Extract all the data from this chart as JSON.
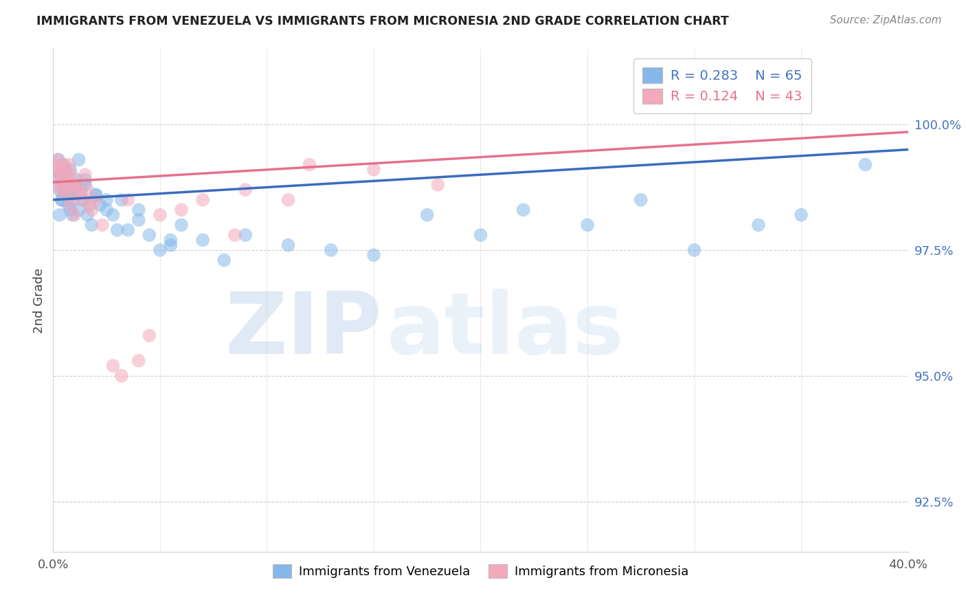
{
  "title": "IMMIGRANTS FROM VENEZUELA VS IMMIGRANTS FROM MICRONESIA 2ND GRADE CORRELATION CHART",
  "source": "Source: ZipAtlas.com",
  "ylabel": "2nd Grade",
  "watermark_zip": "ZIP",
  "watermark_atlas": "atlas",
  "xlim": [
    0.0,
    40.0
  ],
  "ylim": [
    91.5,
    101.5
  ],
  "yticks": [
    92.5,
    95.0,
    97.5,
    100.0
  ],
  "ytick_labels": [
    "92.5%",
    "95.0%",
    "97.5%",
    "100.0%"
  ],
  "background_color": "#ffffff",
  "color_blue": "#85b8e8",
  "color_pink": "#f4a8bb",
  "line_color_blue": "#3a6bbf",
  "line_color_pink": "#e8708a",
  "legend_line1": "R = 0.283    N = 65",
  "legend_line2": "R = 0.124    N = 43",
  "legend_color1": "#4472c4",
  "legend_color2": "#e8708a",
  "bottom_label1": "Immigrants from Venezuela",
  "bottom_label2": "Immigrants from Micronesia",
  "blue_intercept": 98.5,
  "blue_slope": 0.025,
  "pink_intercept": 98.85,
  "pink_slope": 0.025,
  "blue_x": [
    0.15,
    0.2,
    0.25,
    0.3,
    0.35,
    0.4,
    0.45,
    0.5,
    0.55,
    0.6,
    0.65,
    0.7,
    0.75,
    0.8,
    0.85,
    0.9,
    0.95,
    1.0,
    1.1,
    1.2,
    1.3,
    1.4,
    1.5,
    1.6,
    1.7,
    1.8,
    2.0,
    2.2,
    2.5,
    2.8,
    3.2,
    3.5,
    4.0,
    4.5,
    5.0,
    5.5,
    6.0,
    7.0,
    8.0,
    9.0,
    11.0,
    13.0,
    15.0,
    17.5,
    20.0,
    22.0,
    25.0,
    27.5,
    30.0,
    33.0,
    35.0,
    38.0,
    0.3,
    0.4,
    0.5,
    0.6,
    0.8,
    1.0,
    1.2,
    1.5,
    2.0,
    2.5,
    3.0,
    4.0,
    5.5
  ],
  "blue_y": [
    99.1,
    98.9,
    99.3,
    98.7,
    99.0,
    98.5,
    99.2,
    98.8,
    99.1,
    98.6,
    98.8,
    98.4,
    98.7,
    98.3,
    98.6,
    98.2,
    98.5,
    98.7,
    98.9,
    98.3,
    98.7,
    98.5,
    98.8,
    98.2,
    98.4,
    98.0,
    98.6,
    98.4,
    98.5,
    98.2,
    98.5,
    97.9,
    98.3,
    97.8,
    97.5,
    97.6,
    98.0,
    97.7,
    97.3,
    97.8,
    97.6,
    97.5,
    97.4,
    98.2,
    97.8,
    98.3,
    98.0,
    98.5,
    97.5,
    98.0,
    98.2,
    99.2,
    98.2,
    98.5,
    98.7,
    99.0,
    99.1,
    98.8,
    99.3,
    98.9,
    98.6,
    98.3,
    97.9,
    98.1,
    97.7
  ],
  "pink_x": [
    0.1,
    0.15,
    0.2,
    0.25,
    0.3,
    0.35,
    0.4,
    0.5,
    0.6,
    0.7,
    0.8,
    0.9,
    1.0,
    1.1,
    1.2,
    1.4,
    1.6,
    1.8,
    2.0,
    2.3,
    2.8,
    3.2,
    4.0,
    1.5,
    0.45,
    0.55,
    0.65,
    0.75,
    0.85,
    0.95,
    1.3,
    1.7,
    3.5,
    5.0,
    7.0,
    9.0,
    12.0,
    15.0,
    18.0,
    4.5,
    6.0,
    8.5,
    11.0
  ],
  "pink_y": [
    99.2,
    99.0,
    99.3,
    98.8,
    99.1,
    98.7,
    98.9,
    99.2,
    98.6,
    99.0,
    98.4,
    98.8,
    98.2,
    98.6,
    98.8,
    98.5,
    98.7,
    98.3,
    98.5,
    98.0,
    95.2,
    95.0,
    95.3,
    99.0,
    99.1,
    98.9,
    98.7,
    99.2,
    99.0,
    98.8,
    98.6,
    98.4,
    98.5,
    98.2,
    98.5,
    98.7,
    99.2,
    99.1,
    98.8,
    95.8,
    98.3,
    97.8,
    98.5
  ]
}
